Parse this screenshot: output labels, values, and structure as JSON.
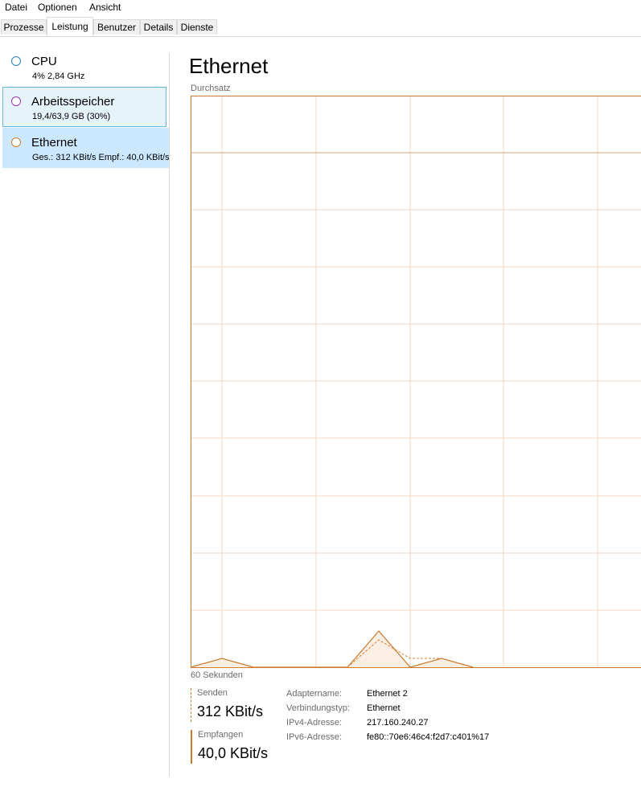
{
  "menu": [
    "Datei",
    "Optionen",
    "Ansicht"
  ],
  "tabs": [
    "Prozesse",
    "Leistung",
    "Benutzer",
    "Details",
    "Dienste"
  ],
  "active_tab": "Leistung",
  "sidebar": {
    "items": [
      {
        "title": "CPU",
        "subtitle": "4%  2,84 GHz",
        "color": "#2380c8"
      },
      {
        "title": "Arbeitsspeicher",
        "subtitle": "19,4/63,9 GB (30%)",
        "color": "#9a33b8"
      },
      {
        "title": "Ethernet",
        "subtitle": "Ges.: 312 KBit/s Empf.: 40,0 KBit/s",
        "color": "#c97a2e"
      }
    ]
  },
  "main": {
    "title": "Ethernet",
    "chart_label": "Durchsatz",
    "time_label": "60 Sekunden"
  },
  "stats": {
    "send_label": "Senden",
    "send_value": "312 KBit/s",
    "recv_label": "Empfangen",
    "recv_value": "40,0 KBit/s"
  },
  "details": [
    {
      "key": "Adaptername:",
      "value": "Ethernet 2"
    },
    {
      "key": "Verbindungstyp:",
      "value": "Ethernet"
    },
    {
      "key": "IPv4-Adresse:",
      "value": "217.160.240.27"
    },
    {
      "key": "IPv6-Adresse:",
      "value": "fe80::70e6:46c4:f2d7:c401%17"
    }
  ],
  "colors": {
    "accent": "#c97a2e",
    "grid": "#f2d9c4",
    "fill": "#fbeee2"
  }
}
